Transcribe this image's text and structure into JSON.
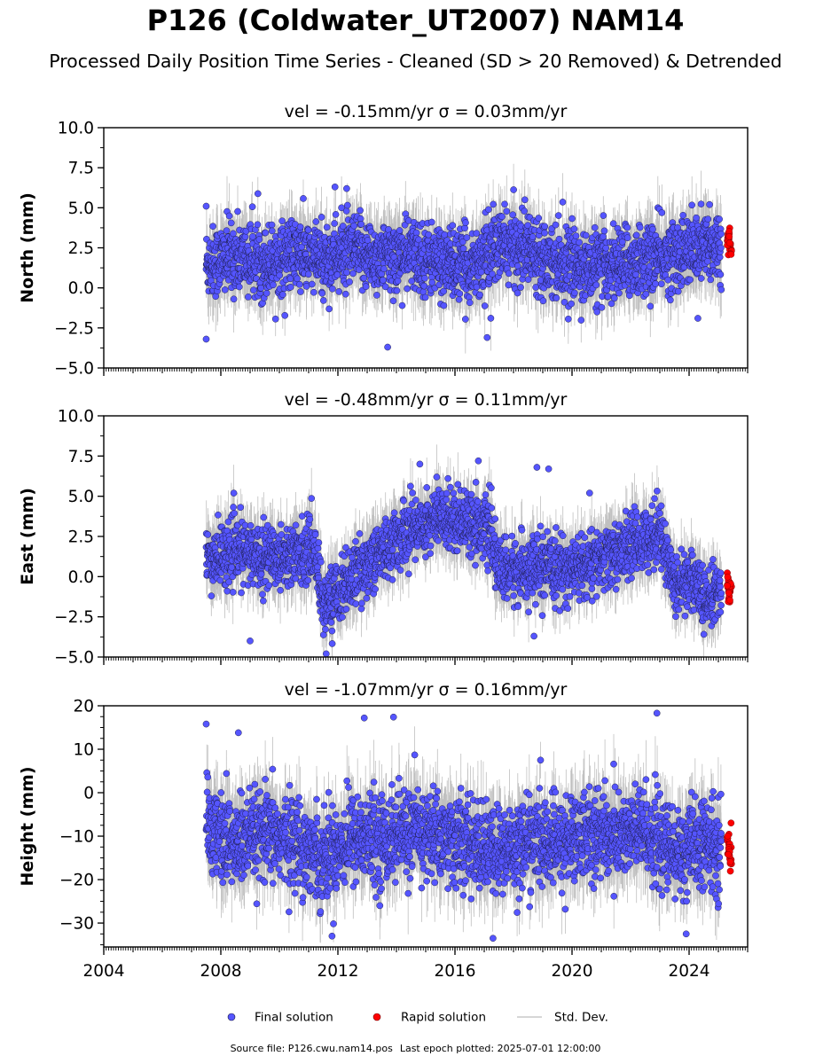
{
  "header": {
    "title": "P126 (Coldwater_UT2007) NAM14",
    "subtitle": "Processed Daily Position Time Series - Cleaned (SD > 20 Removed) & Detrended"
  },
  "footer": {
    "source_label": "Source file: P126.cwu.nam14.pos",
    "last_epoch_label": "Last epoch plotted: 2025-07-01 12:00:00"
  },
  "colors": {
    "final": "#5555ff",
    "final_edge": "#1a1a40",
    "rapid": "#ff0000",
    "rapid_edge": "#700000",
    "stddev": "#8c8c8c"
  },
  "chart_data": [
    {
      "type": "scatter",
      "title": "vel = -0.15mm/yr   σ = 0.03mm/yr",
      "ylabel": "North (mm)",
      "xlim": [
        2004.0,
        2026.0
      ],
      "ylim": [
        -5.0,
        10.0
      ],
      "yticks": [
        -5.0,
        -2.5,
        0.0,
        2.5,
        5.0,
        7.5,
        10.0
      ],
      "ytick_labels": [
        "−5.0",
        "−2.5",
        "0.0",
        "2.5",
        "5.0",
        "7.5",
        "10.0"
      ],
      "xticks": [
        2004,
        2008,
        2012,
        2016,
        2020,
        2024
      ],
      "xtick_labels": [],
      "series": [
        {
          "name": "Final solution",
          "points": [
            [
              2007.5,
              1.5
            ],
            [
              2008.5,
              2.0
            ],
            [
              2009.5,
              1.6
            ],
            [
              2010.5,
              2.1
            ],
            [
              2011.5,
              1.7
            ],
            [
              2012.5,
              2.3
            ],
            [
              2013.5,
              1.8
            ],
            [
              2014.5,
              2.1
            ],
            [
              2015.5,
              1.6
            ],
            [
              2016.5,
              1.3
            ],
            [
              2017.5,
              2.6
            ],
            [
              2018.5,
              2.5
            ],
            [
              2019.5,
              1.7
            ],
            [
              2020.5,
              1.2
            ],
            [
              2021.5,
              1.5
            ],
            [
              2022.5,
              1.7
            ],
            [
              2023.5,
              2.1
            ],
            [
              2024.5,
              2.5
            ],
            [
              2025.1,
              2.8
            ]
          ]
        },
        {
          "name": "Rapid solution",
          "points": [
            [
              2025.3,
              2.7
            ],
            [
              2025.38,
              3.0
            ],
            [
              2025.45,
              2.5
            ]
          ]
        }
      ],
      "outliers": [
        [
          2007.5,
          5.1
        ],
        [
          2007.5,
          -3.2
        ],
        [
          2011.9,
          6.3
        ],
        [
          2012.3,
          6.2
        ],
        [
          2013.7,
          -3.7
        ],
        [
          2017.1,
          -3.1
        ],
        [
          2024.3,
          -1.9
        ],
        [
          2024.7,
          5.2
        ]
      ]
    },
    {
      "type": "scatter",
      "title": "vel = -0.48mm/yr   σ = 0.11mm/yr",
      "ylabel": "East (mm)",
      "xlim": [
        2004.0,
        2026.0
      ],
      "ylim": [
        -5.0,
        10.0
      ],
      "yticks": [
        -5.0,
        -2.5,
        0.0,
        2.5,
        5.0,
        7.5,
        10.0
      ],
      "ytick_labels": [
        "−5.0",
        "−2.5",
        "0.0",
        "2.5",
        "5.0",
        "7.5",
        "10.0"
      ],
      "xticks": [
        2004,
        2008,
        2012,
        2016,
        2020,
        2024
      ],
      "xtick_labels": [],
      "series": [
        {
          "name": "Final solution",
          "points": [
            [
              2007.5,
              1.0
            ],
            [
              2008.5,
              1.6
            ],
            [
              2009.5,
              1.3
            ],
            [
              2010.5,
              1.3
            ],
            [
              2011.2,
              1.8
            ],
            [
              2011.5,
              -1.8
            ],
            [
              2012.5,
              0.0
            ],
            [
              2013.5,
              1.5
            ],
            [
              2014.5,
              3.0
            ],
            [
              2015.5,
              3.7
            ],
            [
              2016.5,
              3.5
            ],
            [
              2017.2,
              2.8
            ],
            [
              2017.5,
              0.3
            ],
            [
              2018.5,
              0.5
            ],
            [
              2019.5,
              0.4
            ],
            [
              2020.5,
              0.6
            ],
            [
              2021.5,
              1.5
            ],
            [
              2022.5,
              2.3
            ],
            [
              2023.0,
              2.9
            ],
            [
              2023.5,
              -0.5
            ],
            [
              2024.2,
              0.0
            ],
            [
              2024.5,
              -1.8
            ],
            [
              2025.1,
              -0.7
            ]
          ]
        },
        {
          "name": "Rapid solution",
          "points": [
            [
              2025.3,
              -0.6
            ],
            [
              2025.38,
              -1.0
            ],
            [
              2025.45,
              -0.3
            ]
          ]
        }
      ],
      "outliers": [
        [
          2009.0,
          -4.0
        ],
        [
          2011.6,
          -4.8
        ],
        [
          2014.8,
          7.0
        ],
        [
          2016.8,
          7.2
        ],
        [
          2018.8,
          6.8
        ],
        [
          2019.2,
          6.7
        ],
        [
          2018.7,
          -3.7
        ],
        [
          2020.6,
          5.2
        ]
      ]
    },
    {
      "type": "scatter",
      "title": "vel = -1.07mm/yr   σ = 0.16mm/yr",
      "ylabel": "Height (mm)",
      "xlim": [
        2004.0,
        2026.0
      ],
      "ylim": [
        -35.5,
        20.0
      ],
      "yticks": [
        -30,
        -20,
        -10,
        0,
        10,
        20
      ],
      "ytick_labels": [
        "−30",
        "−20",
        "−10",
        "0",
        "10",
        "20"
      ],
      "xticks": [
        2004,
        2008,
        2012,
        2016,
        2020,
        2024
      ],
      "xtick_labels": [
        "2004",
        "2008",
        "2012",
        "2016",
        "2020",
        "2024"
      ],
      "series": [
        {
          "name": "Final solution",
          "points": [
            [
              2007.5,
              -8.0
            ],
            [
              2008.5,
              -12.0
            ],
            [
              2009.5,
              -10.0
            ],
            [
              2010.5,
              -11.0
            ],
            [
              2011.5,
              -15.0
            ],
            [
              2012.5,
              -10.0
            ],
            [
              2013.5,
              -11.0
            ],
            [
              2014.5,
              -9.0
            ],
            [
              2015.5,
              -10.0
            ],
            [
              2016.5,
              -12.0
            ],
            [
              2017.5,
              -14.0
            ],
            [
              2018.5,
              -11.0
            ],
            [
              2019.5,
              -12.0
            ],
            [
              2020.5,
              -9.0
            ],
            [
              2021.5,
              -10.0
            ],
            [
              2022.5,
              -9.0
            ],
            [
              2023.5,
              -14.0
            ],
            [
              2024.5,
              -12.0
            ],
            [
              2025.1,
              -13.0
            ]
          ]
        },
        {
          "name": "Rapid solution",
          "points": [
            [
              2025.3,
              -12.0
            ],
            [
              2025.38,
              -14.0
            ],
            [
              2025.45,
              -16.0
            ]
          ]
        }
      ],
      "outliers": [
        [
          2007.5,
          15.8
        ],
        [
          2008.6,
          13.8
        ],
        [
          2012.9,
          17.2
        ],
        [
          2013.9,
          17.4
        ],
        [
          2022.9,
          18.3
        ],
        [
          2017.3,
          -33.5
        ],
        [
          2023.9,
          -32.5
        ],
        [
          2011.8,
          -33.0
        ]
      ]
    }
  ],
  "legend": {
    "placement": "bottom-center",
    "entries": [
      {
        "label": "Final solution",
        "marker": "circle",
        "color": "#5555ff"
      },
      {
        "label": "Rapid solution",
        "marker": "circle",
        "color": "#ff0000"
      },
      {
        "label": "Std. Dev.",
        "marker": "line",
        "color": "#c8c8c8"
      }
    ]
  }
}
